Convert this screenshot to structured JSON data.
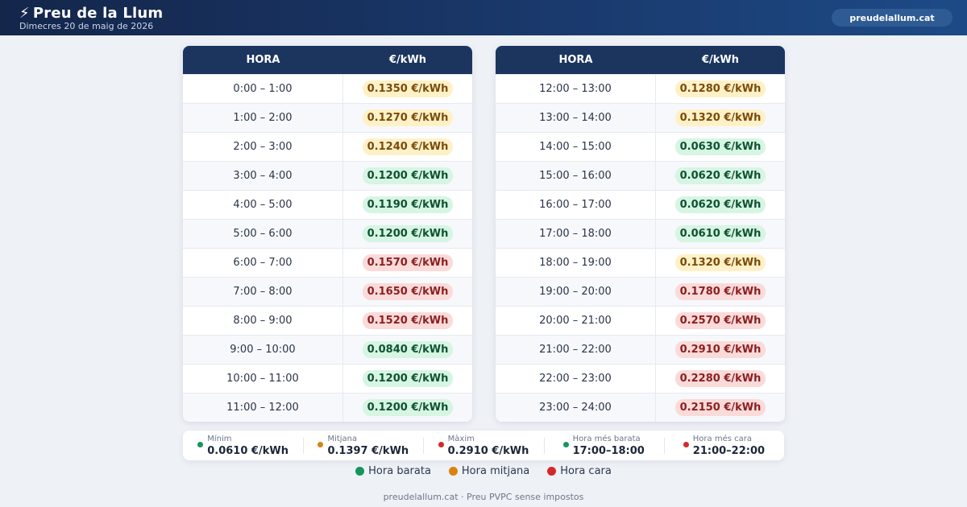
{
  "header": {
    "bolt": "⚡",
    "title": "Preu de la Llum",
    "date": "Dimecres 20 de maig de 2026",
    "site_button": "preudelallum.cat"
  },
  "table": {
    "col_hour": "HORA",
    "col_price": "€/kWh",
    "left_rows": [
      {
        "hour": "0:00 – 1:00",
        "price": "0.1350 €/kWh",
        "level": "mid"
      },
      {
        "hour": "1:00 – 2:00",
        "price": "0.1270 €/kWh",
        "level": "mid"
      },
      {
        "hour": "2:00 – 3:00",
        "price": "0.1240 €/kWh",
        "level": "mid"
      },
      {
        "hour": "3:00 – 4:00",
        "price": "0.1200 €/kWh",
        "level": "low"
      },
      {
        "hour": "4:00 – 5:00",
        "price": "0.1190 €/kWh",
        "level": "low"
      },
      {
        "hour": "5:00 – 6:00",
        "price": "0.1200 €/kWh",
        "level": "low"
      },
      {
        "hour": "6:00 – 7:00",
        "price": "0.1570 €/kWh",
        "level": "high"
      },
      {
        "hour": "7:00 – 8:00",
        "price": "0.1650 €/kWh",
        "level": "high"
      },
      {
        "hour": "8:00 – 9:00",
        "price": "0.1520 €/kWh",
        "level": "high"
      },
      {
        "hour": "9:00 – 10:00",
        "price": "0.0840 €/kWh",
        "level": "low"
      },
      {
        "hour": "10:00 – 11:00",
        "price": "0.1200 €/kWh",
        "level": "low"
      },
      {
        "hour": "11:00 – 12:00",
        "price": "0.1200 €/kWh",
        "level": "low"
      }
    ],
    "right_rows": [
      {
        "hour": "12:00 – 13:00",
        "price": "0.1280 €/kWh",
        "level": "mid"
      },
      {
        "hour": "13:00 – 14:00",
        "price": "0.1320 €/kWh",
        "level": "mid"
      },
      {
        "hour": "14:00 – 15:00",
        "price": "0.0630 €/kWh",
        "level": "low"
      },
      {
        "hour": "15:00 – 16:00",
        "price": "0.0620 €/kWh",
        "level": "low"
      },
      {
        "hour": "16:00 – 17:00",
        "price": "0.0620 €/kWh",
        "level": "low"
      },
      {
        "hour": "17:00 – 18:00",
        "price": "0.0610 €/kWh",
        "level": "low"
      },
      {
        "hour": "18:00 – 19:00",
        "price": "0.1320 €/kWh",
        "level": "mid"
      },
      {
        "hour": "19:00 – 20:00",
        "price": "0.1780 €/kWh",
        "level": "high"
      },
      {
        "hour": "20:00 – 21:00",
        "price": "0.2570 €/kWh",
        "level": "high"
      },
      {
        "hour": "21:00 – 22:00",
        "price": "0.2910 €/kWh",
        "level": "high"
      },
      {
        "hour": "22:00 – 23:00",
        "price": "0.2280 €/kWh",
        "level": "high"
      },
      {
        "hour": "23:00 – 24:00",
        "price": "0.2150 €/kWh",
        "level": "high"
      }
    ]
  },
  "stats": [
    {
      "label": "Mínim",
      "value": "0.0610 €/kWh",
      "dot_color": "#15955a"
    },
    {
      "label": "Mitjana",
      "value": "0.1397 €/kWh",
      "dot_color": "#d9820f"
    },
    {
      "label": "Màxim",
      "value": "0.2910 €/kWh",
      "dot_color": "#d12a2a"
    },
    {
      "label": "Hora més barata",
      "value": "17:00–18:00",
      "dot_color": "#15955a"
    },
    {
      "label": "Hora més cara",
      "value": "21:00–22:00",
      "dot_color": "#d12a2a"
    }
  ],
  "legend": [
    {
      "label": "Hora barata",
      "color": "#15955a"
    },
    {
      "label": "Hora mitjana",
      "color": "#d9820f"
    },
    {
      "label": "Hora cara",
      "color": "#d12a2a"
    }
  ],
  "footer": "preudelallum.cat · Preu PVPC sense impostos"
}
